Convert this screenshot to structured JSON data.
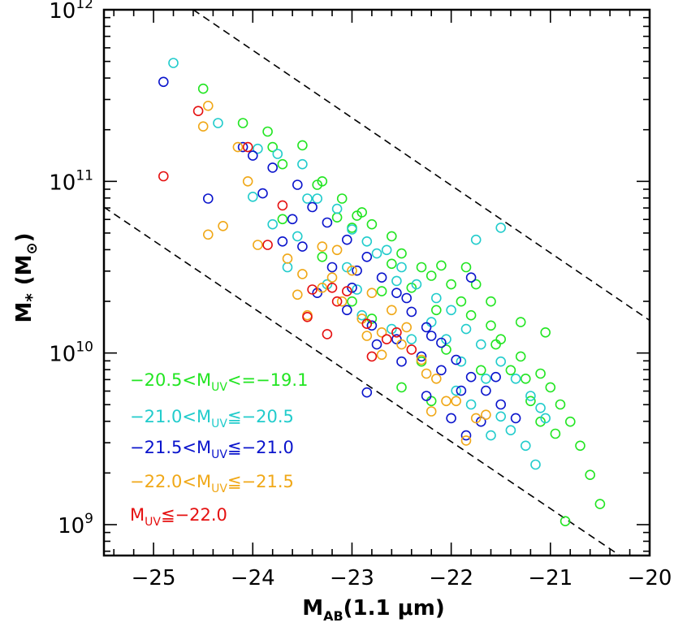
{
  "chart_data": {
    "type": "scatter",
    "xlabel": {
      "main": "M",
      "sub": "AB",
      "rest": "(1.1 μm)"
    },
    "ylabel": {
      "main": "M",
      "sub": "*",
      "rest": "(M",
      "sun": "⊙",
      "close": ")"
    },
    "xlim": [
      -25.5,
      -20
    ],
    "ylim_log10": [
      8.82,
      12.0
    ],
    "y_scale": "log",
    "x_ticks": [
      {
        "value": -25,
        "label": "−25"
      },
      {
        "value": -24,
        "label": "−24"
      },
      {
        "value": -23,
        "label": "−23"
      },
      {
        "value": -22,
        "label": "−22"
      },
      {
        "value": -21,
        "label": "−21"
      },
      {
        "value": -20,
        "label": "−20"
      }
    ],
    "y_ticks": [
      {
        "value": 9,
        "base": "10",
        "exp": "9"
      },
      {
        "value": 10,
        "base": "10",
        "exp": "10"
      },
      {
        "value": 11,
        "base": "10",
        "exp": "11"
      },
      {
        "value": 12,
        "base": "10",
        "exp": "12"
      }
    ],
    "dashed_lines": [
      {
        "points": [
          [
            -24.6,
            12.0
          ],
          [
            -20.0,
            10.19
          ]
        ]
      },
      {
        "points": [
          [
            -25.5,
            10.85
          ],
          [
            -20.3,
            8.82
          ]
        ]
      }
    ],
    "legend_placement": "bottom-left",
    "series": [
      {
        "name": "-20.5<M_UV<=-19.1",
        "label_pre": "−20.5<M",
        "label_sub": "UV",
        "label_post": "<=−19.1",
        "color": "#22e522",
        "points": [
          [
            -24.5,
            11.54
          ],
          [
            -24.1,
            11.34
          ],
          [
            -23.85,
            11.29
          ],
          [
            -23.5,
            11.21
          ],
          [
            -23.7,
            11.1
          ],
          [
            -23.3,
            11.0
          ],
          [
            -23.1,
            10.9
          ],
          [
            -22.95,
            10.8
          ],
          [
            -22.8,
            10.75
          ],
          [
            -22.6,
            10.68
          ],
          [
            -22.5,
            10.58
          ],
          [
            -22.3,
            10.5
          ],
          [
            -22.2,
            10.45
          ],
          [
            -22.0,
            10.4
          ],
          [
            -21.9,
            10.3
          ],
          [
            -21.8,
            10.22
          ],
          [
            -21.6,
            10.16
          ],
          [
            -21.5,
            10.08
          ],
          [
            -21.3,
            9.98
          ],
          [
            -21.1,
            9.88
          ],
          [
            -21.0,
            9.8
          ],
          [
            -20.9,
            9.7
          ],
          [
            -20.8,
            9.6
          ],
          [
            -20.7,
            9.46
          ],
          [
            -20.6,
            9.29
          ],
          [
            -20.5,
            9.12
          ],
          [
            -20.85,
            9.02
          ],
          [
            -21.05,
            10.12
          ],
          [
            -21.3,
            10.18
          ],
          [
            -21.6,
            10.3
          ],
          [
            -21.85,
            10.5
          ],
          [
            -22.1,
            10.51
          ],
          [
            -22.9,
            10.82
          ],
          [
            -23.0,
            10.73
          ],
          [
            -23.15,
            10.79
          ],
          [
            -23.35,
            10.98
          ],
          [
            -23.8,
            11.2
          ],
          [
            -23.7,
            10.78
          ],
          [
            -22.6,
            10.52
          ],
          [
            -22.4,
            10.38
          ],
          [
            -22.05,
            10.02
          ],
          [
            -22.3,
            9.95
          ],
          [
            -22.5,
            9.8
          ],
          [
            -22.8,
            10.2
          ],
          [
            -21.4,
            9.9
          ],
          [
            -21.2,
            9.72
          ],
          [
            -20.95,
            9.53
          ],
          [
            -21.7,
            9.9
          ],
          [
            -22.2,
            9.72
          ],
          [
            -22.7,
            10.36
          ],
          [
            -23.3,
            10.56
          ],
          [
            -23.0,
            10.3
          ],
          [
            -22.15,
            10.25
          ],
          [
            -21.75,
            10.4
          ],
          [
            -21.55,
            10.05
          ],
          [
            -21.25,
            9.85
          ],
          [
            -21.1,
            9.6
          ]
        ]
      },
      {
        "name": "-21.0<M_UV<=-20.5",
        "label_pre": "−21.0<M",
        "label_sub": "UV",
        "label_post": "≦−20.5",
        "color": "#22cccc",
        "points": [
          [
            -24.8,
            11.69
          ],
          [
            -24.35,
            11.34
          ],
          [
            -24.0,
            10.91
          ],
          [
            -23.95,
            11.19
          ],
          [
            -23.75,
            11.16
          ],
          [
            -23.5,
            11.1
          ],
          [
            -23.35,
            10.9
          ],
          [
            -23.15,
            10.84
          ],
          [
            -23.0,
            10.72
          ],
          [
            -22.85,
            10.65
          ],
          [
            -22.65,
            10.6
          ],
          [
            -22.5,
            10.5
          ],
          [
            -22.35,
            10.4
          ],
          [
            -22.15,
            10.32
          ],
          [
            -22.0,
            10.25
          ],
          [
            -21.85,
            10.14
          ],
          [
            -21.7,
            10.05
          ],
          [
            -21.5,
            9.95
          ],
          [
            -21.35,
            9.85
          ],
          [
            -21.2,
            9.75
          ],
          [
            -21.05,
            9.62
          ],
          [
            -21.1,
            9.68
          ],
          [
            -21.15,
            9.35
          ],
          [
            -21.25,
            9.46
          ],
          [
            -21.4,
            9.55
          ],
          [
            -21.5,
            9.63
          ],
          [
            -21.8,
            9.7
          ],
          [
            -21.5,
            10.73
          ],
          [
            -21.75,
            10.66
          ],
          [
            -23.55,
            10.68
          ],
          [
            -23.8,
            10.75
          ],
          [
            -23.25,
            10.4
          ],
          [
            -23.05,
            10.5
          ],
          [
            -22.75,
            10.58
          ],
          [
            -22.55,
            10.42
          ],
          [
            -22.2,
            10.18
          ],
          [
            -22.05,
            10.08
          ],
          [
            -21.9,
            9.95
          ],
          [
            -21.65,
            9.85
          ],
          [
            -22.9,
            10.22
          ],
          [
            -22.6,
            10.14
          ],
          [
            -22.4,
            10.08
          ],
          [
            -21.95,
            9.78
          ],
          [
            -21.6,
            9.52
          ],
          [
            -23.45,
            10.9
          ],
          [
            -22.95,
            10.37
          ],
          [
            -23.65,
            10.5
          ]
        ]
      },
      {
        "name": "-21.5<M_UV<=-21.0",
        "label_pre": "−21.5<M",
        "label_sub": "UV",
        "label_post": "≦−21.0",
        "color": "#0a14cc",
        "points": [
          [
            -24.9,
            11.58
          ],
          [
            -24.45,
            10.9
          ],
          [
            -24.0,
            11.15
          ],
          [
            -23.8,
            11.08
          ],
          [
            -23.55,
            10.98
          ],
          [
            -23.4,
            10.85
          ],
          [
            -23.25,
            10.76
          ],
          [
            -23.05,
            10.66
          ],
          [
            -22.85,
            10.56
          ],
          [
            -22.7,
            10.44
          ],
          [
            -22.55,
            10.35
          ],
          [
            -22.4,
            10.24
          ],
          [
            -22.25,
            10.15
          ],
          [
            -22.1,
            10.06
          ],
          [
            -21.95,
            9.96
          ],
          [
            -21.8,
            9.86
          ],
          [
            -21.65,
            9.78
          ],
          [
            -21.5,
            9.7
          ],
          [
            -21.35,
            9.62
          ],
          [
            -21.8,
            10.44
          ],
          [
            -23.7,
            10.65
          ],
          [
            -23.35,
            10.35
          ],
          [
            -23.05,
            10.25
          ],
          [
            -22.8,
            10.16
          ],
          [
            -22.55,
            10.08
          ],
          [
            -22.3,
            9.98
          ],
          [
            -22.1,
            9.9
          ],
          [
            -21.9,
            9.78
          ],
          [
            -21.7,
            9.6
          ],
          [
            -21.85,
            9.52
          ],
          [
            -22.0,
            9.62
          ],
          [
            -22.25,
            9.75
          ],
          [
            -22.5,
            9.95
          ],
          [
            -22.75,
            10.05
          ],
          [
            -23.0,
            10.38
          ],
          [
            -23.2,
            10.5
          ],
          [
            -23.5,
            10.62
          ],
          [
            -23.6,
            10.78
          ],
          [
            -22.95,
            10.48
          ],
          [
            -22.85,
            9.77
          ],
          [
            -24.1,
            11.2
          ],
          [
            -23.9,
            10.93
          ],
          [
            -22.45,
            10.32
          ],
          [
            -22.2,
            10.1
          ],
          [
            -21.55,
            9.86
          ]
        ]
      },
      {
        "name": "-22.0<M_UV<=-21.5",
        "label_pre": "−22.0<M",
        "label_sub": "UV",
        "label_post": "≦−21.5",
        "color": "#f0a818",
        "points": [
          [
            -24.45,
            11.44
          ],
          [
            -24.5,
            11.32
          ],
          [
            -24.15,
            11.2
          ],
          [
            -24.05,
            11.0
          ],
          [
            -24.3,
            10.74
          ],
          [
            -24.45,
            10.69
          ],
          [
            -23.95,
            10.63
          ],
          [
            -23.65,
            10.55
          ],
          [
            -23.5,
            10.46
          ],
          [
            -23.3,
            10.38
          ],
          [
            -23.1,
            10.3
          ],
          [
            -22.9,
            10.2
          ],
          [
            -22.7,
            10.12
          ],
          [
            -22.5,
            10.05
          ],
          [
            -22.3,
            9.96
          ],
          [
            -22.15,
            9.85
          ],
          [
            -21.95,
            9.72
          ],
          [
            -21.75,
            9.62
          ],
          [
            -21.85,
            9.49
          ],
          [
            -23.3,
            10.62
          ],
          [
            -23.15,
            10.6
          ],
          [
            -23.0,
            10.48
          ],
          [
            -22.8,
            10.35
          ],
          [
            -22.6,
            10.25
          ],
          [
            -22.45,
            10.15
          ],
          [
            -23.45,
            10.22
          ],
          [
            -22.85,
            10.1
          ],
          [
            -22.25,
            9.88
          ],
          [
            -22.05,
            9.72
          ],
          [
            -21.65,
            9.64
          ],
          [
            -22.2,
            9.66
          ],
          [
            -22.7,
            9.99
          ],
          [
            -23.2,
            10.44
          ],
          [
            -23.55,
            10.34
          ]
        ]
      },
      {
        "name": "M_UV<=-22.0",
        "label_pre": "M",
        "label_sub": "UV",
        "label_post": "≦−22.0",
        "color": "#e51010",
        "points": [
          [
            -24.9,
            11.03
          ],
          [
            -24.55,
            11.41
          ],
          [
            -24.05,
            11.2
          ],
          [
            -23.7,
            10.86
          ],
          [
            -23.85,
            10.63
          ],
          [
            -23.4,
            10.37
          ],
          [
            -23.2,
            10.38
          ],
          [
            -23.05,
            10.36
          ],
          [
            -22.85,
            10.17
          ],
          [
            -22.65,
            10.08
          ],
          [
            -22.4,
            10.02
          ],
          [
            -22.8,
            9.98
          ],
          [
            -23.25,
            10.11
          ],
          [
            -23.45,
            10.21
          ],
          [
            -23.15,
            10.3
          ],
          [
            -22.55,
            10.12
          ]
        ]
      }
    ]
  }
}
